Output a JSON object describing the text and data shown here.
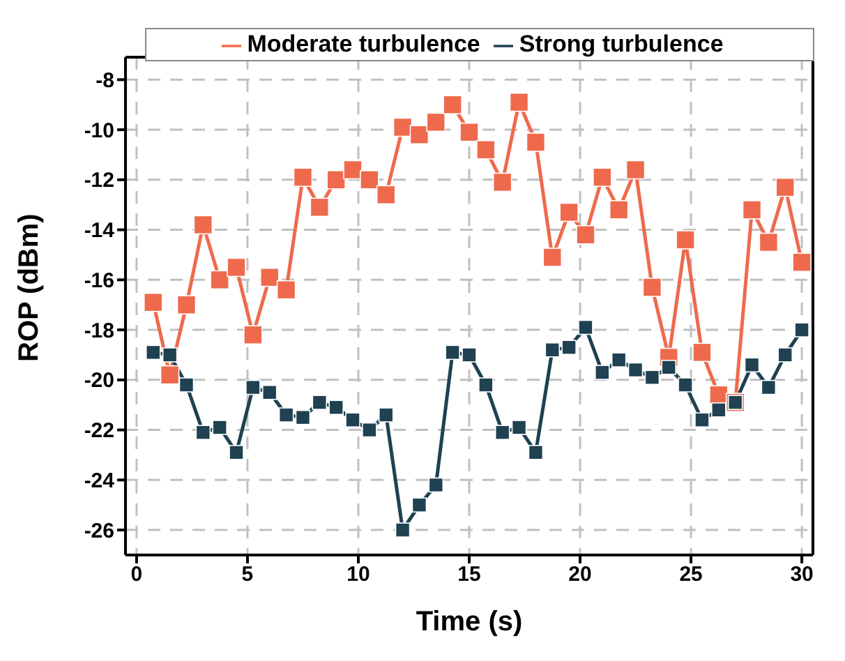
{
  "chart_data": {
    "type": "line",
    "xlabel": "Time (s)",
    "ylabel": "ROP (dBm)",
    "x": [
      0.75,
      1.5,
      2.25,
      3,
      3.75,
      4.5,
      5.25,
      6,
      6.75,
      7.5,
      8.25,
      9,
      9.75,
      10.5,
      11.25,
      12,
      12.75,
      13.5,
      14.25,
      15,
      15.75,
      16.5,
      17.25,
      18,
      18.75,
      19.5,
      20.25,
      21,
      21.75,
      22.5,
      23.25,
      24,
      24.75,
      25.5,
      26.25,
      27,
      27.75,
      28.5,
      29.25,
      30
    ],
    "series": [
      {
        "name": "Moderate turbulence",
        "color": "#ef6a4c",
        "values": [
          -16.9,
          -19.8,
          -17.0,
          -13.8,
          -16.0,
          -15.5,
          -18.2,
          -15.9,
          -16.4,
          -11.9,
          -13.1,
          -12.0,
          -11.6,
          -12.0,
          -12.6,
          -9.9,
          -10.2,
          -9.7,
          -9.0,
          -10.1,
          -10.8,
          -12.1,
          -8.9,
          -10.5,
          -15.1,
          -13.3,
          -14.2,
          -11.9,
          -13.2,
          -11.6,
          -16.3,
          -19.1,
          -14.4,
          -18.9,
          -20.6,
          -20.9,
          -13.2,
          -14.5,
          -12.3,
          -15.3
        ]
      },
      {
        "name": "Strong turbulence",
        "color": "#1f4152",
        "values": [
          -18.9,
          -19.0,
          -20.2,
          -22.1,
          -21.9,
          -22.9,
          -20.3,
          -20.5,
          -21.4,
          -21.5,
          -20.9,
          -21.1,
          -21.6,
          -22.0,
          -21.4,
          -26.0,
          -25.0,
          -24.2,
          -18.9,
          -19.0,
          -20.2,
          -22.1,
          -21.9,
          -22.9,
          -18.8,
          -18.7,
          -17.9,
          -19.7,
          -19.2,
          -19.6,
          -19.9,
          -19.5,
          -20.2,
          -21.6,
          -21.2,
          -20.9,
          -19.4,
          -20.3,
          -19.0,
          -18.0
        ]
      }
    ],
    "xlim": [
      -0.5,
      30.5
    ],
    "xticks": [
      0,
      5,
      10,
      15,
      20,
      25,
      30
    ],
    "ylim": [
      -27,
      -7.1
    ],
    "yticks": [
      -26,
      -24,
      -22,
      -20,
      -18,
      -16,
      -14,
      -12,
      -10,
      -8
    ],
    "grid": true,
    "legend": "top",
    "marker": "square",
    "line_style": "solid"
  }
}
